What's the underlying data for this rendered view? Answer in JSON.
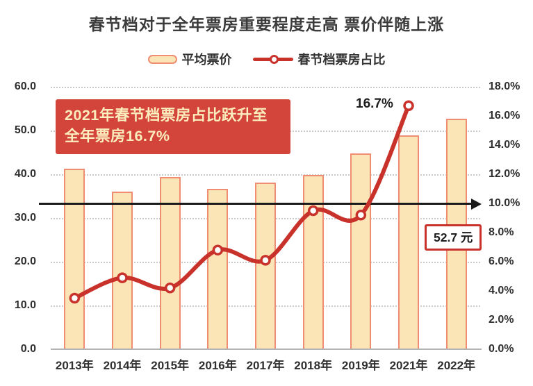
{
  "title": "春节档对于全年票房重要程度走高 票价伴随上涨",
  "legend": [
    {
      "label": "平均票价",
      "type": "bar"
    },
    {
      "label": "春节档票房占比",
      "type": "line"
    }
  ],
  "annotation": {
    "line1": "2021年春节档票房占比跃升至",
    "line2": "全年票房16.7%"
  },
  "callouts": {
    "peak_label": "16.7%",
    "price_label": "52.7 元"
  },
  "chart_data": {
    "type": "bar+line combo",
    "categories": [
      "2013年",
      "2014年",
      "2015年",
      "2016年",
      "2017年",
      "2018年",
      "2019年",
      "2021年",
      "2022年"
    ],
    "series": [
      {
        "name": "平均票价",
        "type": "bar",
        "axis": "left",
        "unit": "元",
        "values": [
          41.2,
          36.1,
          39.4,
          36.6,
          38.1,
          39.9,
          44.7,
          48.9,
          52.7
        ]
      },
      {
        "name": "春节档票房占比",
        "type": "line",
        "axis": "right",
        "unit": "%",
        "values": [
          3.5,
          4.9,
          4.2,
          6.8,
          6.1,
          9.5,
          9.2,
          16.7,
          null
        ]
      }
    ],
    "left_axis": {
      "min": 0,
      "max": 60,
      "step": 10,
      "ticks": [
        "60.0",
        "50.0",
        "40.0",
        "30.0",
        "20.0",
        "10.0",
        "0.0"
      ]
    },
    "right_axis": {
      "min": 0,
      "max": 18,
      "step": 2,
      "ticks": [
        "18.0%",
        "16.0%",
        "14.0%",
        "12.0%",
        "10.0%",
        "8.0%",
        "6.0%",
        "4.0%",
        "2.0%",
        "0.0%"
      ]
    },
    "reference_line": {
      "value_percent": 10.0,
      "style": "solid black with right arrowhead"
    },
    "grid": "dotted horizontal at left-axis steps",
    "legend_position": "top-center"
  },
  "colors": {
    "bar_fill": "#FBE5B6",
    "bar_border": "#EF8D72",
    "line": "#C9322B",
    "marker_fill": "#FFFFFF",
    "annotation_bg": "#D3443A",
    "annotation_text": "#FBEDBE",
    "reference_line": "#1A1A1A",
    "grid": "#C9C9C9",
    "text": "#3A3A3A"
  }
}
